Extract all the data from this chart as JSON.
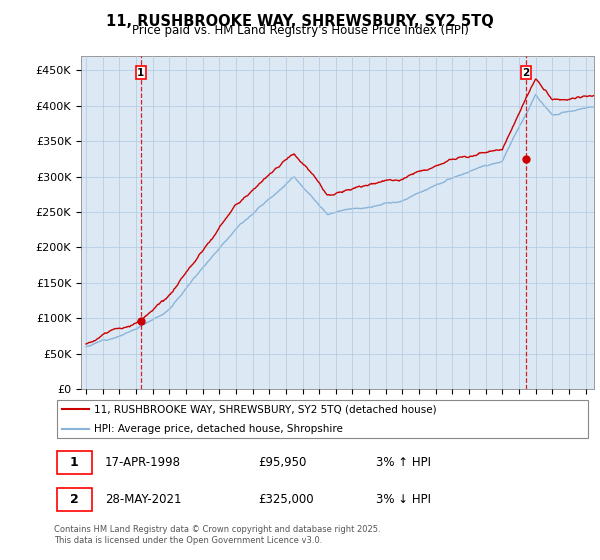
{
  "title_line1": "11, RUSHBROOKE WAY, SHREWSBURY, SY2 5TQ",
  "title_line2": "Price paid vs. HM Land Registry's House Price Index (HPI)",
  "ylim": [
    0,
    470000
  ],
  "yticks": [
    0,
    50000,
    100000,
    150000,
    200000,
    250000,
    300000,
    350000,
    400000,
    450000
  ],
  "ytick_labels": [
    "£0",
    "£50K",
    "£100K",
    "£150K",
    "£200K",
    "£250K",
    "£300K",
    "£350K",
    "£400K",
    "£450K"
  ],
  "xlim_start": 1994.7,
  "xlim_end": 2025.5,
  "legend_line1": "11, RUSHBROOKE WAY, SHREWSBURY, SY2 5TQ (detached house)",
  "legend_line2": "HPI: Average price, detached house, Shropshire",
  "sale1_date": "17-APR-1998",
  "sale1_price": "£95,950",
  "sale1_hpi": "3% ↑ HPI",
  "sale1_year": 1998.29,
  "sale1_value": 95950,
  "sale2_date": "28-MAY-2021",
  "sale2_price": "£325,000",
  "sale2_hpi": "3% ↓ HPI",
  "sale2_year": 2021.41,
  "sale2_value": 325000,
  "hpi_color": "#89b4d9",
  "price_color": "#cc0000",
  "chart_bg": "#dce9f5",
  "grid_color": "#b0c8e0",
  "footer_text": "Contains HM Land Registry data © Crown copyright and database right 2025.\nThis data is licensed under the Open Government Licence v3.0."
}
